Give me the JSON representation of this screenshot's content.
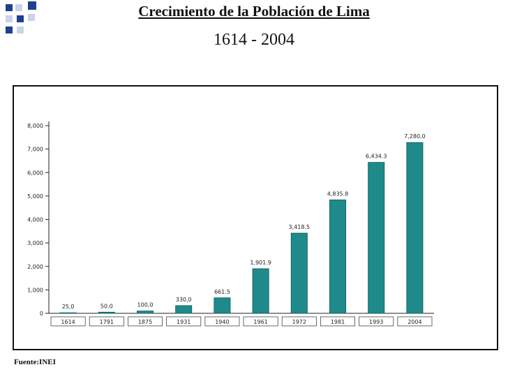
{
  "header": {
    "title": "Crecimiento de la Población de Lima",
    "subtitle": "1614 - 2004"
  },
  "footer": {
    "source": "Fuente:INEI"
  },
  "colors": {
    "bar": "#1f8a8a",
    "bar_edge": "#0f5c5c",
    "deco_dark": "#1f3f8f",
    "deco_light": "#c9d3ea"
  },
  "chart_data": {
    "type": "bar",
    "title": "",
    "xlabel": "",
    "ylabel": "",
    "categories": [
      "1614",
      "1791",
      "1875",
      "1931",
      "1940",
      "1961",
      "1972",
      "1981",
      "1993",
      "2004"
    ],
    "values": [
      25.0,
      50.0,
      100.0,
      330.0,
      661.5,
      1901.9,
      3418.5,
      4835.8,
      6434.3,
      7280.0
    ],
    "value_labels": [
      "25,0",
      "50.0",
      "100,0",
      "330,0",
      "661.5",
      "1,901.9",
      "3,418.5",
      "4,835.8",
      "6,434.3",
      "7,280,0"
    ],
    "ylim": [
      0,
      8000
    ],
    "yticks": [
      0,
      1000,
      2000,
      3000,
      4000,
      5000,
      6000,
      7000,
      8000
    ],
    "ytick_labels": [
      "0",
      "1,000",
      "2,000",
      "3,000",
      "4,000",
      "5,000",
      "6,000",
      "7,000",
      "8,000"
    ],
    "grid": false,
    "legend": "none"
  }
}
